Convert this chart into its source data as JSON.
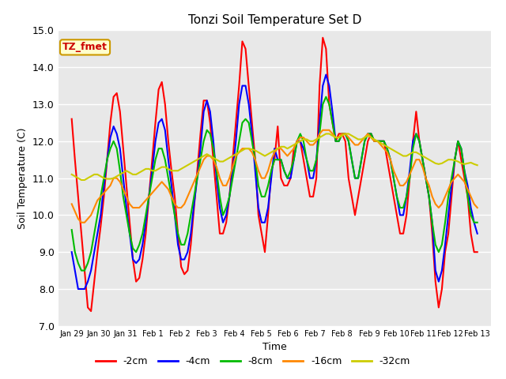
{
  "title": "Tonzi Soil Temperature Set D",
  "xlabel": "Time",
  "ylabel": "Soil Temperature (C)",
  "ylim": [
    7.0,
    15.0
  ],
  "yticks": [
    7.0,
    8.0,
    9.0,
    10.0,
    11.0,
    12.0,
    13.0,
    14.0,
    15.0
  ],
  "background_color": "#e8e8e8",
  "fig_background": "#ffffff",
  "annotation_label": "TZ_fmet",
  "annotation_color": "#cc0000",
  "annotation_bg": "#ffffcc",
  "annotation_border": "#cc9900",
  "series_colors": {
    "-2cm": "#ff0000",
    "-4cm": "#0000ff",
    "-8cm": "#00bb00",
    "-16cm": "#ff8800",
    "-32cm": "#cccc00"
  },
  "x_ticklabels": [
    "Jan 29",
    "Jan 30",
    "Jan 31",
    "Feb 1",
    "Feb 2",
    "Feb 3",
    "Feb 4",
    "Feb 5",
    "Feb 6",
    "Feb 7",
    "Feb 8",
    "Feb 9",
    "Feb 10",
    "Feb 11",
    "Feb 12",
    "Feb 13"
  ],
  "num_days": 16,
  "points_per_day": 8,
  "data": {
    "-2cm": [
      12.6,
      11.5,
      10.5,
      9.5,
      8.5,
      7.5,
      7.4,
      8.2,
      9.0,
      9.7,
      10.5,
      11.5,
      12.5,
      13.2,
      13.3,
      12.8,
      11.8,
      10.8,
      9.8,
      8.8,
      8.2,
      8.3,
      8.8,
      9.5,
      10.5,
      11.5,
      12.5,
      13.4,
      13.6,
      13.0,
      12.0,
      11.2,
      10.5,
      9.5,
      8.6,
      8.4,
      8.5,
      9.2,
      10.2,
      11.2,
      12.2,
      13.1,
      13.1,
      12.5,
      11.5,
      10.5,
      9.5,
      9.5,
      9.8,
      10.5,
      11.5,
      12.5,
      13.5,
      14.7,
      14.5,
      13.5,
      12.5,
      11.5,
      10.0,
      9.5,
      9.0,
      10.0,
      11.2,
      11.5,
      12.4,
      11.0,
      10.8,
      10.8,
      11.0,
      11.8,
      12.0,
      12.0,
      11.5,
      11.0,
      10.5,
      10.5,
      11.0,
      13.5,
      14.8,
      14.5,
      13.0,
      12.5,
      12.0,
      12.2,
      12.2,
      12.0,
      11.0,
      10.5,
      10.0,
      10.5,
      11.0,
      11.5,
      12.0,
      12.2,
      12.0,
      12.0,
      12.0,
      12.0,
      11.5,
      11.0,
      10.5,
      10.0,
      9.5,
      9.5,
      10.0,
      11.0,
      12.0,
      12.8,
      12.0,
      11.5,
      11.0,
      10.5,
      9.5,
      8.2,
      7.5,
      8.0,
      9.0,
      9.5,
      10.5,
      11.5,
      12.0,
      11.5,
      11.0,
      10.5,
      9.5,
      9.0,
      9.0
    ],
    "-4cm": [
      9.0,
      8.5,
      8.0,
      8.0,
      8.0,
      8.2,
      8.5,
      9.0,
      9.5,
      10.0,
      10.8,
      11.5,
      12.1,
      12.4,
      12.2,
      11.8,
      11.0,
      10.2,
      9.5,
      8.8,
      8.7,
      8.8,
      9.2,
      9.8,
      10.5,
      11.2,
      12.0,
      12.5,
      12.6,
      12.3,
      11.5,
      10.8,
      10.0,
      9.2,
      8.8,
      8.8,
      9.0,
      9.5,
      10.3,
      11.0,
      11.8,
      12.8,
      13.1,
      12.8,
      12.0,
      11.0,
      10.2,
      9.8,
      10.0,
      10.5,
      11.2,
      12.0,
      13.0,
      13.5,
      13.5,
      13.0,
      12.2,
      11.2,
      10.2,
      9.8,
      9.8,
      10.2,
      11.0,
      11.8,
      11.5,
      11.5,
      11.2,
      11.0,
      11.0,
      11.5,
      12.0,
      12.0,
      11.8,
      11.5,
      11.0,
      11.0,
      11.5,
      12.5,
      13.5,
      13.8,
      13.5,
      12.8,
      12.0,
      12.0,
      12.2,
      12.2,
      12.0,
      11.5,
      11.0,
      11.0,
      11.5,
      12.0,
      12.2,
      12.2,
      12.0,
      12.0,
      12.0,
      12.0,
      11.8,
      11.5,
      11.0,
      10.5,
      10.0,
      10.0,
      10.5,
      11.2,
      12.0,
      12.2,
      12.0,
      11.5,
      11.0,
      10.5,
      9.8,
      8.5,
      8.2,
      8.5,
      9.2,
      10.0,
      10.8,
      11.5,
      12.0,
      11.8,
      11.2,
      10.8,
      10.2,
      9.8,
      9.5
    ],
    "-8cm": [
      9.6,
      9.0,
      8.7,
      8.5,
      8.5,
      8.7,
      9.0,
      9.5,
      10.0,
      10.5,
      11.0,
      11.5,
      11.8,
      12.0,
      11.8,
      11.2,
      10.5,
      10.0,
      9.5,
      9.1,
      9.0,
      9.2,
      9.5,
      10.0,
      10.5,
      11.0,
      11.5,
      11.8,
      11.8,
      11.5,
      11.0,
      10.5,
      10.0,
      9.5,
      9.2,
      9.2,
      9.5,
      10.0,
      10.5,
      11.0,
      11.5,
      12.0,
      12.3,
      12.2,
      11.8,
      11.2,
      10.5,
      10.0,
      10.2,
      10.5,
      11.0,
      11.5,
      12.0,
      12.5,
      12.6,
      12.5,
      12.0,
      11.5,
      10.8,
      10.5,
      10.5,
      10.8,
      11.2,
      11.5,
      11.5,
      11.5,
      11.2,
      11.0,
      11.2,
      11.5,
      12.0,
      12.2,
      12.0,
      11.5,
      11.2,
      11.2,
      11.5,
      12.2,
      13.0,
      13.2,
      13.0,
      12.5,
      12.0,
      12.0,
      12.2,
      12.2,
      12.0,
      11.5,
      11.0,
      11.0,
      11.5,
      12.0,
      12.2,
      12.2,
      12.0,
      12.0,
      12.0,
      12.0,
      11.8,
      11.5,
      11.0,
      10.5,
      10.2,
      10.2,
      10.5,
      11.0,
      11.8,
      12.2,
      12.0,
      11.5,
      11.0,
      10.5,
      9.8,
      9.2,
      9.0,
      9.2,
      9.8,
      10.5,
      11.0,
      11.5,
      12.0,
      11.8,
      11.2,
      10.5,
      10.0,
      9.8,
      9.8
    ],
    "-16cm": [
      10.3,
      10.1,
      9.9,
      9.8,
      9.8,
      9.9,
      10.0,
      10.2,
      10.4,
      10.5,
      10.6,
      10.7,
      10.8,
      11.0,
      11.0,
      10.9,
      10.7,
      10.5,
      10.3,
      10.2,
      10.2,
      10.2,
      10.3,
      10.4,
      10.5,
      10.6,
      10.7,
      10.8,
      10.9,
      10.8,
      10.7,
      10.5,
      10.3,
      10.2,
      10.2,
      10.3,
      10.5,
      10.7,
      10.9,
      11.1,
      11.3,
      11.5,
      11.6,
      11.6,
      11.5,
      11.3,
      11.0,
      10.8,
      10.8,
      11.0,
      11.3,
      11.6,
      11.7,
      11.8,
      11.8,
      11.8,
      11.7,
      11.5,
      11.2,
      11.0,
      11.0,
      11.2,
      11.5,
      11.7,
      11.8,
      11.8,
      11.7,
      11.6,
      11.7,
      11.8,
      12.0,
      12.1,
      12.1,
      12.0,
      11.9,
      11.9,
      12.0,
      12.2,
      12.3,
      12.3,
      12.3,
      12.2,
      12.1,
      12.1,
      12.2,
      12.2,
      12.1,
      12.0,
      11.9,
      11.9,
      12.0,
      12.1,
      12.2,
      12.1,
      12.0,
      12.0,
      11.9,
      11.8,
      11.7,
      11.5,
      11.2,
      11.0,
      10.8,
      10.8,
      10.9,
      11.1,
      11.3,
      11.5,
      11.5,
      11.3,
      11.0,
      10.8,
      10.5,
      10.3,
      10.2,
      10.3,
      10.5,
      10.7,
      10.9,
      11.0,
      11.1,
      11.0,
      10.9,
      10.7,
      10.5,
      10.3,
      10.2
    ],
    "-32cm": [
      11.1,
      11.05,
      11.0,
      10.95,
      10.95,
      11.0,
      11.05,
      11.1,
      11.1,
      11.05,
      11.0,
      10.98,
      10.98,
      11.0,
      11.05,
      11.1,
      11.15,
      11.2,
      11.15,
      11.1,
      11.1,
      11.15,
      11.2,
      11.25,
      11.25,
      11.2,
      11.2,
      11.25,
      11.3,
      11.3,
      11.25,
      11.2,
      11.2,
      11.2,
      11.25,
      11.3,
      11.35,
      11.4,
      11.45,
      11.5,
      11.55,
      11.6,
      11.65,
      11.6,
      11.55,
      11.5,
      11.45,
      11.45,
      11.5,
      11.55,
      11.6,
      11.65,
      11.7,
      11.75,
      11.8,
      11.8,
      11.78,
      11.75,
      11.7,
      11.65,
      11.6,
      11.65,
      11.7,
      11.75,
      11.8,
      11.85,
      11.85,
      11.8,
      11.85,
      11.9,
      11.95,
      12.0,
      12.05,
      12.05,
      12.0,
      12.0,
      12.05,
      12.1,
      12.15,
      12.2,
      12.2,
      12.15,
      12.1,
      12.1,
      12.15,
      12.2,
      12.2,
      12.15,
      12.1,
      12.05,
      12.05,
      12.1,
      12.15,
      12.1,
      12.05,
      12.0,
      11.95,
      11.9,
      11.85,
      11.8,
      11.75,
      11.7,
      11.65,
      11.6,
      11.6,
      11.65,
      11.7,
      11.7,
      11.65,
      11.6,
      11.55,
      11.5,
      11.45,
      11.4,
      11.38,
      11.4,
      11.45,
      11.5,
      11.5,
      11.48,
      11.45,
      11.4,
      11.38,
      11.4,
      11.42,
      11.38,
      11.35
    ]
  }
}
